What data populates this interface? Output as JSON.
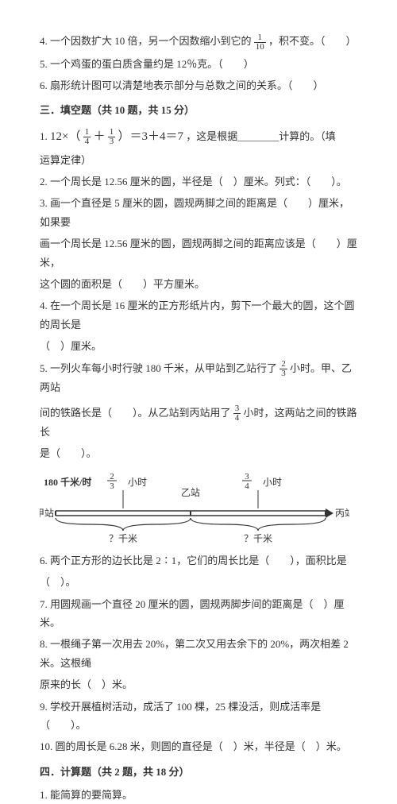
{
  "top": {
    "q4_a": "4. 一个因数扩大 10 倍，另一个因数缩小到它的",
    "q4_frac_num": "1",
    "q4_frac_den": "10",
    "q4_b": "，积不变。（　　）",
    "q5": "5. 一个鸡蛋的蛋白质含量约是 12％克。（　　）",
    "q6": "6. 扇形统计图可以清楚地表示部分与总数之间的关系。（　　）"
  },
  "sec3_title": "三．填空题（共 10 题，共 15 分）",
  "sec3": {
    "q1_prefix": "1.",
    "q1_formula_a": "12×（",
    "q1_frac1_num": "1",
    "q1_frac1_den": "4",
    "q1_plus": "＋",
    "q1_frac2_num": "1",
    "q1_frac2_den": "3",
    "q1_formula_b": "）＝3＋4＝7",
    "q1_tail": "，这是根据________计算的。（填",
    "q1_tail2": "运算定律）",
    "q2": "2. 一个周长是 12.56 厘米的圆，半径是（　）厘米。列式：（　　）。",
    "q3a": "3. 画一个直径是 5 厘米的圆，圆规两脚之间的距离是（　　）厘米，如果要",
    "q3b": "画一个周长是 12.56 厘米的圆，圆规两脚之间的距离应该是（　　）厘米，",
    "q3c": "这个圆的面积是（　　）平方厘米。",
    "q4a": "4. 在一个周长是 16 厘米的正方形纸片内，剪下一个最大的圆，这个圆的周长是",
    "q4b": "（　）厘米。",
    "q5a_a": "5. 一列火车每小时行驶 180 千米，从甲站到乙站行了",
    "q5a_frac_num": "2",
    "q5a_frac_den": "3",
    "q5a_b": "小时。甲、乙两站",
    "q5b_a": "间的铁路长是（　　）。从乙站到丙站用了",
    "q5b_frac_num": "3",
    "q5b_frac_den": "4",
    "q5b_b": "小时，这两站之间的铁路长",
    "q5c": "是（　　）。",
    "q6a": "6. 两个正方形的边长比是 2∶1，它们的周长比是（　　），面积比是",
    "q6b": "（　）。",
    "q7": "7. 用圆规画一个直径 20 厘米的圆，圆规两脚步间的距离是（　）厘米。",
    "q8a": "8. 一根绳子第一次用去 20%，第二次又用去余下的 20%，两次相差 2 米。这根绳",
    "q8b": "原来的长（　）米。",
    "q9": "9. 学校开展植树活动，成活了 100 棵，25 棵没活，则成活率是（　　）。",
    "q10": "10. 圆的周长是 6.28 米，则圆的直径是（　）米，半径是（　）米。"
  },
  "sec4_title": "四．计算题（共 2 题，共 18 分）",
  "sec4_q1": "1. 能简算的要简算。",
  "diagram": {
    "speed": "180 千米/时",
    "t1_num": "2",
    "t1_den": "3",
    "t1_unit": "小时",
    "t2_num": "3",
    "t2_den": "4",
    "t2_unit": "小时",
    "sta_a": "甲站",
    "sta_b": "乙站",
    "sta_c": "丙站",
    "qkm": "？千米",
    "stroke": "#333333",
    "fontsize": 12
  }
}
